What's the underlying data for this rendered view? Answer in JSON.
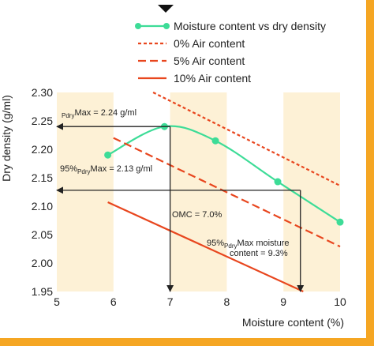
{
  "chart_data": {
    "type": "line",
    "xlabel": "Moisture content (%)",
    "ylabel": "Dry density (g/ml)",
    "xlim": [
      5,
      10
    ],
    "ylim": [
      1.95,
      2.3
    ],
    "x_ticks": [
      "5",
      "6",
      "7",
      "8",
      "9",
      "10"
    ],
    "y_ticks": [
      "1.95",
      "2.00",
      "2.05",
      "2.10",
      "2.15",
      "2.20",
      "2.25",
      "2.30"
    ],
    "x_tick_values": [
      5,
      6,
      7,
      8,
      9,
      10
    ],
    "y_tick_values": [
      1.95,
      2.0,
      2.05,
      2.1,
      2.15,
      2.2,
      2.25,
      2.3
    ],
    "background_bands_x": [
      [
        5,
        6
      ],
      [
        7,
        8
      ],
      [
        9,
        10
      ]
    ],
    "series": [
      {
        "name": "Moisture content vs dry density",
        "style": "solid-with-markers",
        "color": "#3DDC97",
        "points": [
          [
            5.9,
            2.19
          ],
          [
            6.9,
            2.24
          ],
          [
            7.8,
            2.215
          ],
          [
            8.9,
            2.143
          ],
          [
            10.0,
            2.072
          ]
        ]
      },
      {
        "name": "0% Air content",
        "style": "dotted",
        "color": "#E8461E",
        "points": [
          [
            6.7,
            2.3
          ],
          [
            10.0,
            2.136
          ]
        ]
      },
      {
        "name": "5% Air content",
        "style": "dashed",
        "color": "#E8461E",
        "points": [
          [
            6.0,
            2.22
          ],
          [
            10.0,
            2.029
          ]
        ]
      },
      {
        "name": "10% Air content",
        "style": "solid",
        "color": "#E8461E",
        "points": [
          [
            5.9,
            2.107
          ],
          [
            9.35,
            1.95
          ]
        ]
      }
    ],
    "reference_lines": [
      {
        "from": [
          7.0,
          2.24
        ],
        "to": [
          5.0,
          2.24
        ],
        "arrow": "end"
      },
      {
        "from": [
          9.3,
          2.128
        ],
        "to": [
          5.0,
          2.128
        ],
        "arrow": "end"
      },
      {
        "from": [
          7.0,
          2.24
        ],
        "to": [
          7.0,
          1.95
        ],
        "arrow": "end"
      },
      {
        "from": [
          9.3,
          2.128
        ],
        "to": [
          9.3,
          1.95
        ],
        "arrow": "end"
      }
    ],
    "annotations": {
      "max_prefix": "",
      "max_sub": "Pdry",
      "max_suffix": "Max = 2.24 g/ml",
      "pct95_prefix": "95%",
      "pct95_sub": "Pdry",
      "pct95_suffix": "Max = 2.13 g/ml",
      "omc": "OMC = 7.0%",
      "pct95_moist_prefix": "95%",
      "pct95_moist_sub": "Pdry",
      "pct95_moist_suffix": "Max moisture",
      "pct95_moist_line2": "content = 9.3%"
    }
  },
  "colors": {
    "band": "#FDF1D6",
    "frame": "#F5A623",
    "reference": "#222222"
  }
}
